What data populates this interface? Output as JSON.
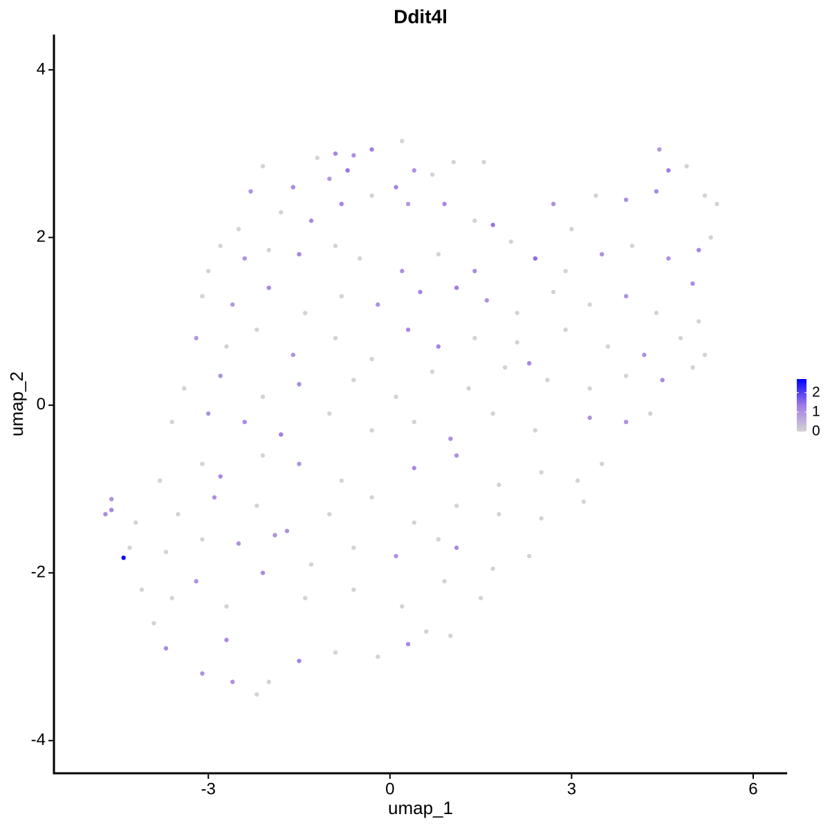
{
  "chart_data": {
    "type": "scatter",
    "title": "Ddit4l",
    "x_label": "umap_1",
    "y_label": "umap_2",
    "xlim": [
      -5.55,
      6.56
    ],
    "ylim": [
      -4.39,
      4.42
    ],
    "xticks": [
      -3,
      0,
      3,
      6
    ],
    "yticks": [
      -4,
      -2,
      0,
      2,
      4
    ],
    "colors": [
      "#d3d3d3",
      "#a07ae6",
      "#0000ff"
    ],
    "colorlim": [
      0,
      2.7
    ],
    "colorticks": [
      0,
      1,
      2
    ],
    "x": [
      -2.1,
      -1.6,
      -1.2,
      -0.9,
      -0.6,
      -0.3,
      0.2,
      0.4,
      0.7,
      1.05,
      1.55,
      -0.7,
      -1.0,
      0.1,
      -2.3,
      -1.8,
      -1.3,
      -0.8,
      -0.3,
      0.3,
      0.9,
      1.4,
      1.7,
      -2.5,
      3.4,
      3.9,
      4.4,
      4.6,
      4.45,
      4.9,
      5.2,
      5.4,
      2.7,
      3.0,
      -2.8,
      -2.4,
      -2.0,
      -1.5,
      -0.9,
      -0.5,
      0.2,
      0.8,
      1.4,
      2.0,
      2.4,
      2.9,
      3.5,
      4.0,
      4.6,
      5.1,
      5.3,
      -3.0,
      -3.1,
      -2.6,
      -2.0,
      -1.4,
      -0.8,
      -0.2,
      0.5,
      1.1,
      1.6,
      2.1,
      2.7,
      3.3,
      3.9,
      4.4,
      5.0,
      5.1,
      -3.2,
      -2.7,
      -2.2,
      -1.6,
      -0.9,
      -0.3,
      0.3,
      0.8,
      1.4,
      2.1,
      2.3,
      2.9,
      3.6,
      4.2,
      4.8,
      5.2,
      -3.4,
      -2.8,
      -2.1,
      -1.5,
      -0.6,
      0.1,
      0.7,
      1.3,
      1.9,
      2.6,
      3.3,
      3.9,
      4.5,
      5.0,
      -3.6,
      -3.0,
      -2.4,
      -1.8,
      -1.0,
      -0.3,
      0.4,
      1.0,
      1.7,
      2.4,
      3.3,
      3.9,
      4.3,
      -3.8,
      -3.1,
      -2.8,
      -2.1,
      -1.5,
      -0.8,
      0.4,
      1.1,
      1.8,
      2.5,
      3.1,
      3.5,
      -4.6,
      -4.7,
      -4.6,
      -4.2,
      -3.5,
      -2.9,
      -2.2,
      -1.7,
      -1.0,
      -0.3,
      0.4,
      1.1,
      1.8,
      2.5,
      3.2,
      -4.4,
      -4.3,
      -3.7,
      -3.1,
      -2.5,
      -1.9,
      -1.3,
      -0.6,
      0.1,
      0.8,
      1.1,
      1.7,
      2.3,
      -4.1,
      -3.6,
      -3.2,
      -2.7,
      -2.1,
      -1.4,
      -0.6,
      0.2,
      0.9,
      1.5,
      -3.9,
      -3.7,
      -3.1,
      -2.6,
      -2.2,
      -1.5,
      -0.9,
      -0.2,
      0.3,
      0.6,
      -2.7,
      -2.0,
      1.0
    ],
    "y": [
      2.85,
      2.6,
      2.95,
      3.0,
      2.98,
      3.05,
      3.15,
      2.8,
      2.75,
      2.9,
      2.9,
      2.8,
      2.7,
      2.6,
      2.55,
      2.3,
      2.2,
      2.4,
      2.5,
      2.4,
      2.4,
      2.2,
      2.15,
      2.1,
      2.5,
      2.45,
      2.55,
      2.8,
      3.05,
      2.85,
      2.5,
      2.4,
      2.4,
      2.1,
      1.9,
      1.75,
      1.85,
      1.8,
      1.9,
      1.75,
      1.6,
      1.8,
      1.6,
      1.95,
      1.75,
      1.6,
      1.8,
      1.9,
      1.75,
      1.85,
      2.0,
      1.6,
      1.3,
      1.2,
      1.4,
      1.1,
      1.3,
      1.2,
      1.35,
      1.4,
      1.25,
      1.1,
      1.35,
      1.2,
      1.3,
      1.1,
      1.45,
      1.0,
      0.8,
      0.7,
      0.9,
      0.6,
      0.8,
      0.55,
      0.9,
      0.7,
      0.8,
      0.75,
      0.5,
      0.9,
      0.7,
      0.6,
      0.8,
      0.6,
      0.2,
      0.35,
      0.1,
      0.25,
      0.3,
      0.1,
      0.4,
      0.2,
      0.45,
      0.3,
      0.2,
      0.35,
      0.3,
      0.45,
      -0.2,
      -0.1,
      -0.2,
      -0.35,
      -0.1,
      -0.3,
      -0.2,
      -0.4,
      -0.1,
      -0.3,
      -0.15,
      -0.2,
      -0.1,
      -0.9,
      -0.7,
      -0.85,
      -0.6,
      -0.7,
      -0.9,
      -0.75,
      -0.6,
      -0.95,
      -0.8,
      -0.9,
      -0.7,
      -1.25,
      -1.3,
      -1.12,
      -1.4,
      -1.3,
      -1.1,
      -1.2,
      -1.5,
      -1.3,
      -1.1,
      -1.4,
      -1.2,
      -1.3,
      -1.35,
      -1.15,
      -1.82,
      -1.7,
      -1.75,
      -1.6,
      -1.65,
      -1.55,
      -1.9,
      -1.7,
      -1.8,
      -1.6,
      -1.7,
      -1.95,
      -1.8,
      -2.2,
      -2.3,
      -2.1,
      -2.4,
      -2.0,
      -2.3,
      -2.2,
      -2.4,
      -2.1,
      -2.3,
      -2.6,
      -2.9,
      -3.2,
      -3.3,
      -3.45,
      -3.05,
      -2.95,
      -3.0,
      -2.85,
      -2.7,
      -2.8,
      -3.3,
      -2.75
    ],
    "values": [
      0,
      1.1,
      0,
      1.2,
      1.0,
      1.3,
      0,
      1.0,
      0,
      0,
      0,
      1.4,
      0.9,
      1.2,
      1.0,
      0,
      1.1,
      1.2,
      0,
      0.9,
      1.1,
      0,
      1.4,
      0,
      0,
      1.0,
      1.1,
      1.3,
      0.9,
      0,
      0,
      0,
      1.0,
      0,
      0,
      1.0,
      0,
      1.2,
      0,
      0,
      1.0,
      0,
      1.1,
      0,
      1.5,
      0,
      1.0,
      0,
      1.0,
      1.2,
      0,
      0,
      0,
      0.9,
      1.1,
      0,
      0,
      1.0,
      1.2,
      1.3,
      1.0,
      0,
      0,
      0,
      1.0,
      0,
      1.1,
      0,
      0.9,
      0,
      0,
      1.0,
      0,
      0,
      1.1,
      1.2,
      0,
      0,
      1.2,
      0,
      0,
      1.0,
      0,
      0,
      0,
      1.0,
      0,
      1.1,
      0,
      0,
      0,
      0,
      0,
      0,
      0,
      0,
      1.1,
      0,
      0,
      1.0,
      1.1,
      1.3,
      0,
      0,
      0,
      1.0,
      0,
      0,
      1.0,
      1.0,
      0,
      0,
      0,
      1.1,
      0,
      1.0,
      0,
      1.1,
      1.0,
      0,
      0,
      0,
      0,
      1.2,
      1.1,
      1.0,
      0,
      0,
      1.0,
      0,
      1.0,
      0,
      0,
      0,
      0,
      0,
      0,
      0,
      2.6,
      0,
      0,
      0,
      1.0,
      1.0,
      0,
      0,
      1.0,
      0,
      1.1,
      0,
      0,
      0,
      0,
      1.0,
      0,
      1.1,
      0,
      0,
      0,
      0,
      0,
      0,
      1.1,
      1.0,
      1.0,
      0,
      1.2,
      0,
      0,
      1.1,
      0,
      1.1,
      0,
      0
    ]
  }
}
